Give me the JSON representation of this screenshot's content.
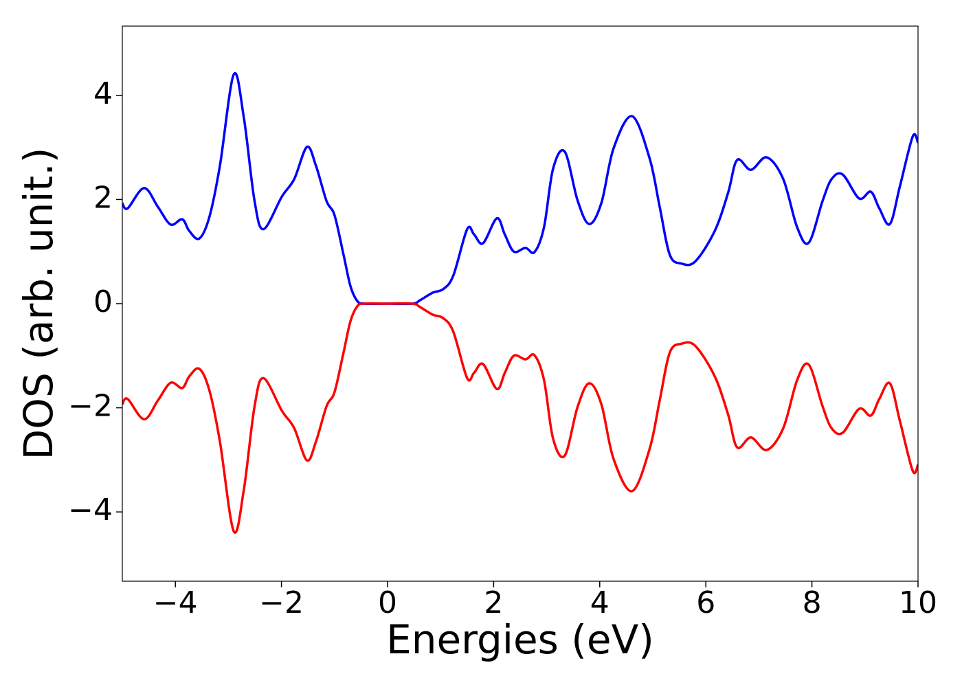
{
  "chart_data": {
    "type": "line",
    "xlabel": "Energies (eV)",
    "ylabel": "DOS (arb. unit.)",
    "xlim": [
      -5,
      10
    ],
    "ylim": [
      -5.33,
      5.33
    ],
    "xticks": [
      {
        "value": -4,
        "label": "−4"
      },
      {
        "value": -2,
        "label": "−2"
      },
      0,
      2,
      4,
      6,
      8,
      10
    ],
    "yticks": [
      {
        "value": -4,
        "label": "−4"
      },
      {
        "value": -2,
        "label": "−2"
      },
      0,
      2,
      4
    ],
    "grid": false,
    "x": [
      -5,
      -4.9,
      -4.59,
      -4.33,
      -4.09,
      -3.87,
      -3.74,
      -3.55,
      -3.36,
      -3.16,
      -2.9,
      -2.71,
      -2.51,
      -2.34,
      -1.99,
      -1.76,
      -1.52,
      -1.35,
      -1.15,
      -1.0,
      -0.83,
      -0.7,
      -0.57,
      -0.44,
      0,
      0.47,
      0.62,
      0.85,
      1.05,
      1.24,
      1.5,
      1.63,
      1.8,
      2.06,
      2.21,
      2.38,
      2.6,
      2.77,
      2.95,
      3.12,
      3.34,
      3.58,
      3.8,
      4.03,
      4.26,
      4.61,
      4.94,
      5.13,
      5.32,
      5.54,
      5.8,
      6.17,
      6.42,
      6.59,
      6.85,
      7.15,
      7.46,
      7.72,
      7.94,
      8.2,
      8.37,
      8.58,
      8.89,
      9.11,
      9.27,
      9.47,
      9.66,
      9.9,
      10
    ],
    "series": [
      {
        "color": "#0000ff",
        "values": [
          1.93,
          1.83,
          2.22,
          1.86,
          1.52,
          1.62,
          1.4,
          1.25,
          1.66,
          2.65,
          4.4,
          3.58,
          1.99,
          1.43,
          2.06,
          2.39,
          3.01,
          2.65,
          1.97,
          1.7,
          0.94,
          0.34,
          0.05,
          0,
          0,
          0,
          0.07,
          0.21,
          0.28,
          0.54,
          1.43,
          1.33,
          1.16,
          1.64,
          1.33,
          1.0,
          1.07,
          0.99,
          1.47,
          2.59,
          2.92,
          1.99,
          1.53,
          1.93,
          2.98,
          3.6,
          2.79,
          1.86,
          0.94,
          0.77,
          0.81,
          1.4,
          2.13,
          2.76,
          2.57,
          2.81,
          2.39,
          1.47,
          1.17,
          1.97,
          2.39,
          2.48,
          2.02,
          2.15,
          1.83,
          1.53,
          2.26,
          3.21,
          3.09
        ]
      },
      {
        "color": "#ff0000",
        "values": [
          -1.93,
          -1.83,
          -2.22,
          -1.86,
          -1.52,
          -1.62,
          -1.4,
          -1.25,
          -1.66,
          -2.65,
          -4.37,
          -3.58,
          -1.99,
          -1.43,
          -2.06,
          -2.39,
          -3.01,
          -2.65,
          -1.97,
          -1.7,
          -0.94,
          -0.34,
          -0.05,
          0,
          0,
          0,
          -0.07,
          -0.21,
          -0.28,
          -0.54,
          -1.43,
          -1.33,
          -1.16,
          -1.64,
          -1.33,
          -1.0,
          -1.07,
          -0.99,
          -1.47,
          -2.59,
          -2.92,
          -1.99,
          -1.53,
          -1.93,
          -2.98,
          -3.6,
          -2.79,
          -1.86,
          -0.94,
          -0.77,
          -0.81,
          -1.4,
          -2.13,
          -2.76,
          -2.57,
          -2.81,
          -2.39,
          -1.47,
          -1.17,
          -1.97,
          -2.39,
          -2.48,
          -2.02,
          -2.15,
          -1.83,
          -1.53,
          -2.26,
          -3.21,
          -3.09
        ]
      }
    ]
  }
}
